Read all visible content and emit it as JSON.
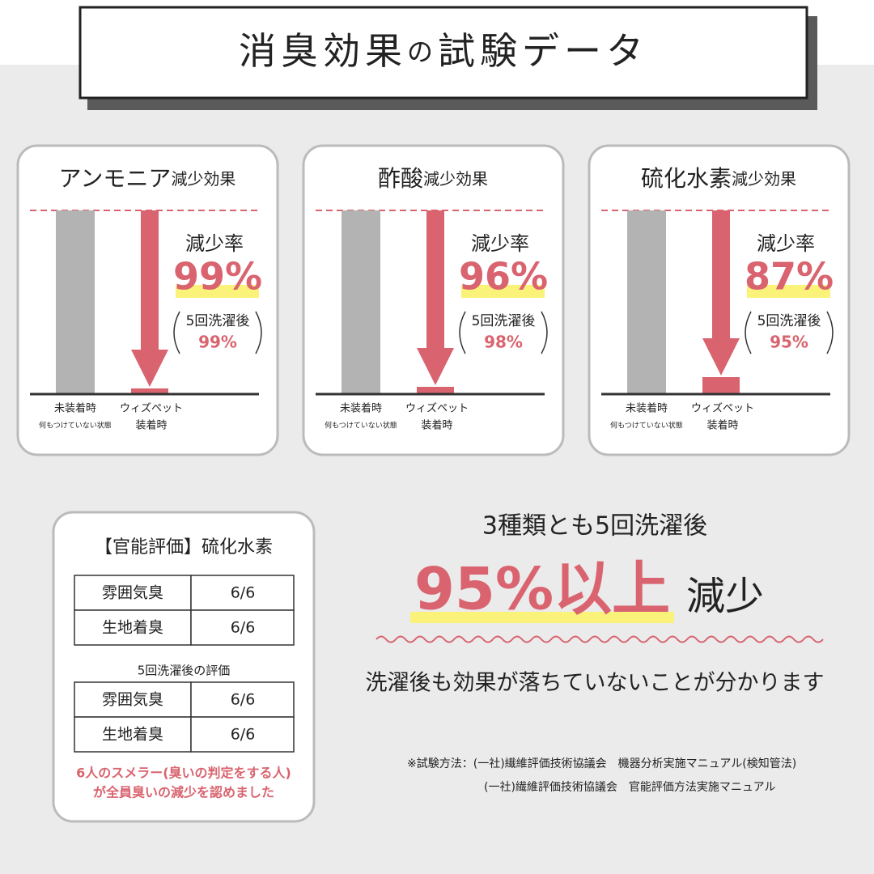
{
  "header": {
    "title_main": "消臭効果",
    "title_particle": "の",
    "title_rest": "試験データ"
  },
  "panels": [
    {
      "gas": "アンモニア",
      "suffix": "減少効果",
      "rate_label": "減少率",
      "rate": "99%",
      "after_label": "5回洗濯後",
      "after_rate": "99%",
      "bar1_label": "未装着時",
      "bar1_sub": "何もつけていない状態",
      "bar2_label": "ウィズペット",
      "bar2_sub": "装着時"
    },
    {
      "gas": "酢酸",
      "suffix": "減少効果",
      "rate_label": "減少率",
      "rate": "96%",
      "after_label": "5回洗濯後",
      "after_rate": "98%",
      "bar1_label": "未装着時",
      "bar1_sub": "何もつけていない状態",
      "bar2_label": "ウィズペット",
      "bar2_sub": "装着時"
    },
    {
      "gas": "硫化水素",
      "suffix": "減少効果",
      "rate_label": "減少率",
      "rate": "87%",
      "after_label": "5回洗濯後",
      "after_rate": "95%",
      "bar1_label": "未装着時",
      "bar1_sub": "何もつけていない状態",
      "bar2_label": "ウィズペット",
      "bar2_sub": "装着時"
    }
  ],
  "sensory": {
    "title": "【官能評価】硫化水素",
    "rows": [
      [
        "雰囲気臭",
        "6/6"
      ],
      [
        "生地着臭",
        "6/6"
      ]
    ],
    "after_title": "5回洗濯後の評価",
    "after_rows": [
      [
        "雰囲気臭",
        "6/6"
      ],
      [
        "生地着臭",
        "6/6"
      ]
    ],
    "note": [
      "6人のスメラー(臭いの判定をする人)",
      "が全員臭いの減少を認めました"
    ]
  },
  "summary": {
    "lead": "3種類とも5回洗濯後",
    "headline": "95%以上",
    "headline_suffix": "減少",
    "sub": "洗濯後も効果が落ちていないことが分かります"
  },
  "footnote": [
    "※試験方法：(一社)繊維評価技術協議会　機器分析実施マニュアル(検知管法)",
    "(一社)繊維評価技術協議会　官能評価方法実施マニュアル"
  ]
}
